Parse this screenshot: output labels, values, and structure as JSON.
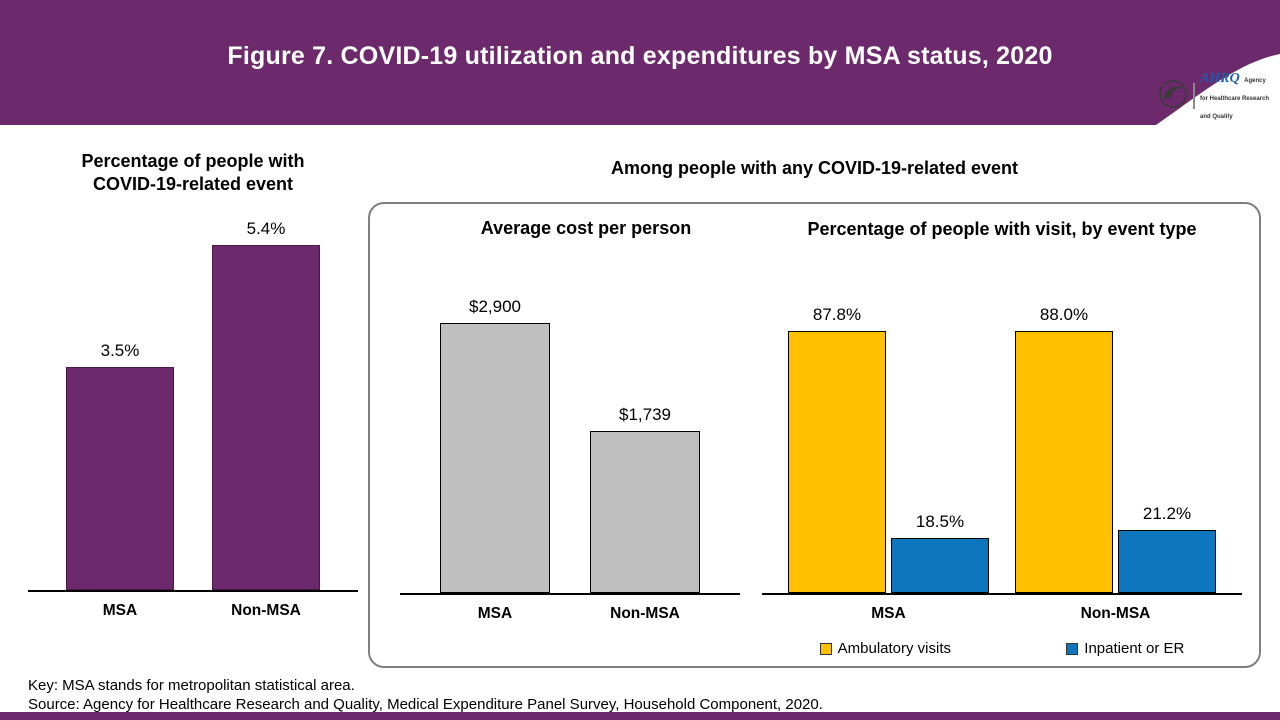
{
  "header": {
    "title": "Figure 7. COVID-19 utilization and expenditures by MSA status, 2020",
    "bar_color": "#6C2A6C",
    "logo": {
      "acronym": "AHRQ",
      "tagline": "Agency for Healthcare Research and Quality"
    }
  },
  "panel_title": "Among people with any COVID-19-related event",
  "footer": {
    "key": "Key: MSA stands for metropolitan statistical area.",
    "source": "Source: Agency for Healthcare Research and Quality, Medical Expenditure Panel Survey, Household Component, 2020."
  },
  "chart_data": [
    {
      "type": "bar",
      "title": "Percentage of people with\nCOVID-19-related event",
      "categories": [
        "MSA",
        "Non-MSA"
      ],
      "values": [
        3.5,
        5.4
      ],
      "value_labels": [
        "3.5%",
        "5.4%"
      ],
      "bar_color": "#6C2A6C",
      "ylim": [
        0,
        6
      ],
      "grid": false,
      "legend_position": "none"
    },
    {
      "type": "bar",
      "title": "Average cost per person",
      "categories": [
        "MSA",
        "Non-MSA"
      ],
      "values": [
        2900,
        1739
      ],
      "value_labels": [
        "$2,900",
        "$1,739"
      ],
      "bar_color": "#BFBFBF",
      "ylim": [
        0,
        3200
      ],
      "grid": false,
      "legend_position": "none"
    },
    {
      "type": "bar",
      "title": "Percentage of people with visit, by event type",
      "categories": [
        "MSA",
        "Non-MSA"
      ],
      "series": [
        {
          "name": "Ambulatory visits",
          "values": [
            87.8,
            88.0
          ],
          "value_labels": [
            "87.8%",
            "88.0%"
          ],
          "color": "#FFC000"
        },
        {
          "name": "Inpatient or ER",
          "values": [
            18.5,
            21.2
          ],
          "value_labels": [
            "18.5%",
            "21.2%"
          ],
          "color": "#0E76BC"
        }
      ],
      "ylim": [
        0,
        100
      ],
      "grid": false,
      "legend_position": "bottom"
    }
  ]
}
